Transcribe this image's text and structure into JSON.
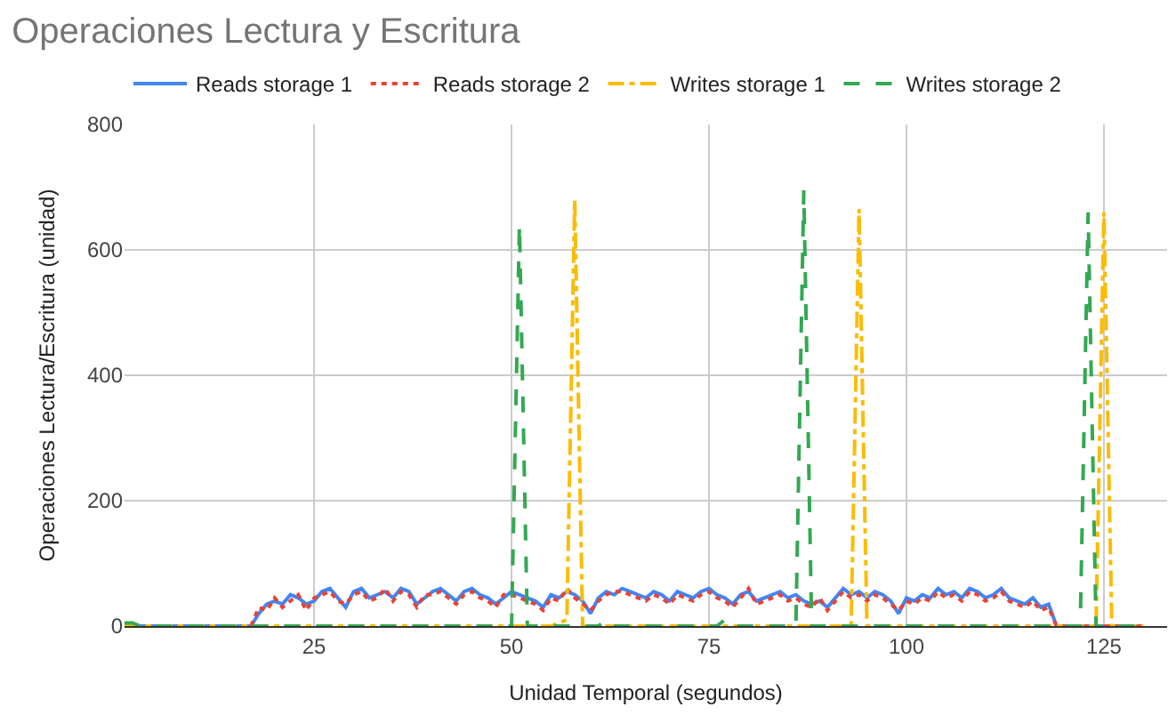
{
  "chart_data": {
    "type": "line",
    "title": "Operaciones Lectura y Escritura",
    "xlabel": "Unidad Temporal (segundos)",
    "ylabel": "Operaciones Lectura/Escritura (unidad)",
    "x": [
      1,
      2,
      3,
      4,
      5,
      6,
      7,
      8,
      9,
      10,
      11,
      12,
      13,
      14,
      15,
      16,
      17,
      18,
      19,
      20,
      21,
      22,
      23,
      24,
      25,
      26,
      27,
      28,
      29,
      30,
      31,
      32,
      33,
      34,
      35,
      36,
      37,
      38,
      39,
      40,
      41,
      42,
      43,
      44,
      45,
      46,
      47,
      48,
      49,
      50,
      51,
      52,
      53,
      54,
      55,
      56,
      57,
      58,
      59,
      60,
      61,
      62,
      63,
      64,
      65,
      66,
      67,
      68,
      69,
      70,
      71,
      72,
      73,
      74,
      75,
      76,
      77,
      78,
      79,
      80,
      81,
      82,
      83,
      84,
      85,
      86,
      87,
      88,
      89,
      90,
      91,
      92,
      93,
      94,
      95,
      96,
      97,
      98,
      99,
      100,
      101,
      102,
      103,
      104,
      105,
      106,
      107,
      108,
      109,
      110,
      111,
      112,
      113,
      114,
      115,
      116,
      117,
      118,
      119,
      120,
      121,
      122,
      123,
      124,
      125,
      126,
      127,
      128,
      129,
      130
    ],
    "series": [
      {
        "name": "Reads storage 1",
        "color": "#4285f4",
        "line_style": "solid",
        "values": [
          0,
          0,
          0,
          0,
          0,
          0,
          0,
          0,
          0,
          0,
          0,
          0,
          0,
          0,
          0,
          0,
          0,
          20,
          35,
          40,
          35,
          50,
          45,
          35,
          40,
          55,
          60,
          45,
          30,
          55,
          60,
          45,
          50,
          55,
          45,
          60,
          55,
          35,
          45,
          55,
          60,
          50,
          40,
          55,
          60,
          50,
          45,
          35,
          45,
          55,
          50,
          45,
          40,
          30,
          50,
          45,
          55,
          50,
          40,
          20,
          45,
          55,
          50,
          60,
          55,
          50,
          45,
          55,
          50,
          40,
          55,
          50,
          45,
          55,
          60,
          50,
          45,
          35,
          50,
          55,
          40,
          45,
          50,
          55,
          45,
          50,
          40,
          35,
          40,
          30,
          45,
          60,
          50,
          55,
          45,
          55,
          50,
          40,
          20,
          45,
          40,
          50,
          45,
          60,
          50,
          55,
          45,
          60,
          55,
          45,
          50,
          60,
          45,
          40,
          35,
          45,
          30,
          35,
          0,
          0,
          0,
          0,
          0,
          0,
          0,
          0,
          0,
          null,
          null,
          null
        ]
      },
      {
        "name": "Reads storage 2",
        "color": "#ea4335",
        "line_style": "dotted",
        "values": [
          null,
          null,
          null,
          null,
          null,
          null,
          null,
          null,
          null,
          null,
          null,
          null,
          null,
          null,
          null,
          null,
          0,
          30,
          25,
          45,
          30,
          40,
          50,
          25,
          45,
          50,
          55,
          40,
          35,
          50,
          55,
          40,
          45,
          60,
          40,
          55,
          50,
          30,
          50,
          50,
          55,
          45,
          35,
          50,
          55,
          45,
          40,
          30,
          50,
          50,
          45,
          40,
          35,
          25,
          45,
          40,
          60,
          45,
          35,
          25,
          40,
          50,
          55,
          55,
          50,
          45,
          40,
          50,
          45,
          35,
          50,
          45,
          40,
          50,
          55,
          45,
          40,
          30,
          45,
          60,
          35,
          40,
          45,
          50,
          40,
          45,
          35,
          30,
          45,
          25,
          40,
          55,
          45,
          50,
          40,
          50,
          45,
          35,
          25,
          40,
          35,
          45,
          40,
          55,
          45,
          50,
          40,
          55,
          50,
          40,
          45,
          55,
          40,
          35,
          30,
          40,
          25,
          30,
          0,
          0,
          0,
          0,
          0,
          0,
          0,
          0,
          0,
          0,
          0,
          0
        ]
      },
      {
        "name": "Writes storage 1",
        "color": "#fbbc04",
        "line_style": "dashdot",
        "values": [
          0,
          0,
          0,
          0,
          0,
          0,
          0,
          0,
          0,
          0,
          0,
          0,
          0,
          0,
          0,
          0,
          0,
          0,
          0,
          0,
          0,
          0,
          0,
          0,
          0,
          0,
          0,
          0,
          0,
          0,
          0,
          0,
          0,
          0,
          0,
          0,
          0,
          0,
          0,
          0,
          0,
          0,
          0,
          0,
          0,
          0,
          0,
          0,
          0,
          0,
          0,
          0,
          0,
          0,
          0,
          5,
          10,
          680,
          0,
          0,
          0,
          0,
          0,
          0,
          0,
          0,
          0,
          0,
          0,
          0,
          0,
          0,
          0,
          0,
          0,
          0,
          0,
          0,
          0,
          0,
          0,
          0,
          0,
          0,
          0,
          0,
          0,
          0,
          0,
          0,
          0,
          0,
          0,
          665,
          0,
          0,
          0,
          0,
          0,
          0,
          0,
          0,
          0,
          0,
          0,
          0,
          0,
          0,
          0,
          0,
          0,
          0,
          0,
          0,
          0,
          0,
          0,
          0,
          0,
          0,
          0,
          0,
          0,
          0,
          660,
          0,
          0,
          0,
          0,
          0
        ]
      },
      {
        "name": "Writes storage 2",
        "color": "#34a853",
        "line_style": "dashed",
        "values": [
          5,
          5,
          0,
          0,
          0,
          0,
          0,
          0,
          0,
          0,
          0,
          0,
          0,
          0,
          0,
          0,
          0,
          0,
          0,
          0,
          0,
          0,
          0,
          0,
          0,
          0,
          0,
          0,
          0,
          0,
          0,
          0,
          0,
          0,
          0,
          0,
          0,
          0,
          0,
          0,
          0,
          0,
          0,
          0,
          0,
          0,
          0,
          0,
          0,
          0,
          640,
          0,
          0,
          0,
          0,
          0,
          0,
          0,
          0,
          0,
          0,
          10,
          0,
          0,
          0,
          0,
          0,
          0,
          0,
          0,
          0,
          0,
          0,
          0,
          0,
          0,
          10,
          0,
          0,
          0,
          0,
          0,
          0,
          0,
          0,
          0,
          695,
          0,
          0,
          0,
          0,
          0,
          0,
          0,
          0,
          0,
          0,
          0,
          0,
          0,
          0,
          0,
          0,
          0,
          0,
          0,
          0,
          0,
          0,
          0,
          0,
          0,
          0,
          0,
          0,
          0,
          0,
          0,
          0,
          0,
          0,
          0,
          660,
          0,
          0,
          0,
          0,
          0,
          0,
          0
        ]
      }
    ],
    "xlim": [
      1,
      133
    ],
    "xticks": [
      25,
      50,
      75,
      100,
      125
    ],
    "ylim": [
      0,
      800
    ],
    "yticks": [
      0,
      200,
      400,
      600,
      800
    ],
    "grid": true,
    "legend": "top left"
  }
}
